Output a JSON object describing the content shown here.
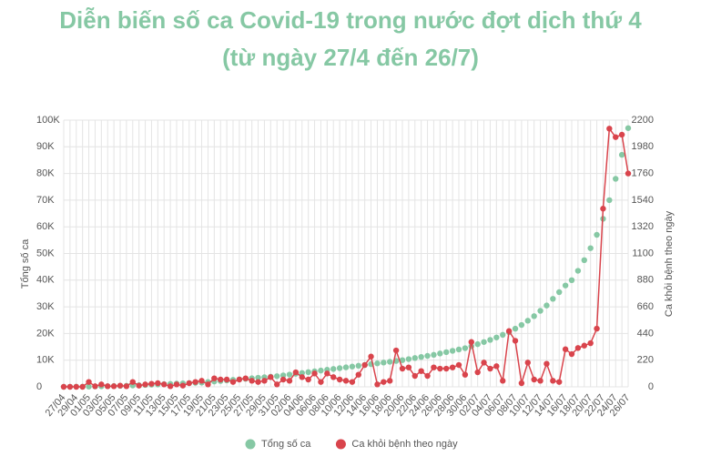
{
  "chart_data": {
    "type": "line",
    "title": "Diễn biến số ca Covid-19 trong nước đợt dịch thứ 4",
    "subtitle": "(từ ngày 27/4 đến 26/7)",
    "y_label": "Tổng số ca",
    "y2_label": "Ca khỏi bệnh theo ngày",
    "categories": [
      "27/04",
      null,
      "29/04",
      null,
      "01/05",
      null,
      "03/05",
      null,
      "05/05",
      null,
      "07/05",
      null,
      "09/05",
      null,
      "11/05",
      null,
      "13/05",
      null,
      "15/05",
      null,
      "17/05",
      null,
      "19/05",
      null,
      "21/05",
      null,
      "23/05",
      null,
      "25/05",
      null,
      "27/05",
      null,
      "29/05",
      null,
      "31/05",
      null,
      "02/06",
      null,
      "04/06",
      null,
      "06/06",
      null,
      "08/06",
      null,
      "10/06",
      null,
      "12/06",
      null,
      "14/06",
      null,
      "16/06",
      null,
      "18/06",
      null,
      "20/06",
      null,
      "22/06",
      null,
      "24/06",
      null,
      "26/06",
      null,
      "28/06",
      null,
      "30/06",
      null,
      "02/07",
      null,
      "04/07",
      null,
      "06/07",
      null,
      "08/07",
      null,
      "10/07",
      null,
      "12/07",
      null,
      "14/07",
      null,
      "16/07",
      null,
      "18/07",
      null,
      "20/07",
      null,
      "22/07",
      null,
      "24/07",
      null,
      "26/07"
    ],
    "series": [
      {
        "name": "Tổng số ca",
        "color": "#86c8a4",
        "line": false,
        "axis": "y",
        "values": [
          0,
          20,
          40,
          60,
          100,
          150,
          200,
          250,
          300,
          350,
          400,
          500,
          600,
          700,
          800,
          900,
          1000,
          1100,
          1200,
          1300,
          1400,
          1500,
          1600,
          1800,
          2000,
          2200,
          2400,
          2600,
          2800,
          3000,
          3200,
          3400,
          3600,
          3800,
          4000,
          4300,
          4600,
          4900,
          5200,
          5500,
          5800,
          6100,
          6400,
          6700,
          7000,
          7300,
          7600,
          7900,
          8200,
          8500,
          8800,
          9100,
          9400,
          9700,
          10000,
          10400,
          10800,
          11200,
          11600,
          12000,
          12500,
          13000,
          13500,
          14000,
          14500,
          15200,
          16000,
          16800,
          17600,
          18500,
          19500,
          20500,
          21800,
          23200,
          24800,
          26500,
          28500,
          30500,
          33000,
          35500,
          38000,
          40000,
          43500,
          47500,
          52000,
          57000,
          63000,
          70000,
          78000,
          87000,
          97000
        ]
      },
      {
        "name": "Ca khỏi bệnh theo ngày",
        "color": "#d9444c",
        "line": true,
        "axis": "y2",
        "values": [
          0,
          0,
          0,
          0,
          40,
          5,
          20,
          5,
          5,
          10,
          5,
          40,
          10,
          20,
          25,
          30,
          20,
          5,
          20,
          10,
          30,
          40,
          50,
          20,
          70,
          60,
          60,
          40,
          60,
          70,
          50,
          40,
          50,
          80,
          20,
          60,
          50,
          120,
          80,
          60,
          110,
          40,
          110,
          80,
          60,
          50,
          40,
          100,
          180,
          250,
          20,
          40,
          50,
          300,
          150,
          160,
          90,
          130,
          90,
          160,
          150,
          150,
          160,
          180,
          100,
          370,
          120,
          200,
          150,
          170,
          50,
          460,
          380,
          30,
          200,
          60,
          50,
          190,
          50,
          40,
          310,
          270,
          320,
          340,
          360,
          480,
          1470,
          2130,
          2060,
          2080,
          1760
        ]
      }
    ],
    "ylim": [
      0,
      100000
    ],
    "yticks": [
      0,
      {
        "value": 10000,
        "label": "10K"
      },
      {
        "value": 20000,
        "label": "20K"
      },
      {
        "value": 30000,
        "label": "30K"
      },
      {
        "value": 40000,
        "label": "40K"
      },
      {
        "value": 50000,
        "label": "50K"
      },
      {
        "value": 60000,
        "label": "60K"
      },
      {
        "value": 70000,
        "label": "70K"
      },
      {
        "value": 80000,
        "label": "80K"
      },
      {
        "value": 90000,
        "label": "90K"
      },
      {
        "value": 100000,
        "label": "100K"
      }
    ],
    "y2lim": [
      0,
      2200
    ],
    "y2ticks": [
      0,
      220,
      440,
      660,
      880,
      1100,
      1320,
      1540,
      1760,
      1980,
      2200
    ],
    "grid": true,
    "legend": "bottom"
  }
}
